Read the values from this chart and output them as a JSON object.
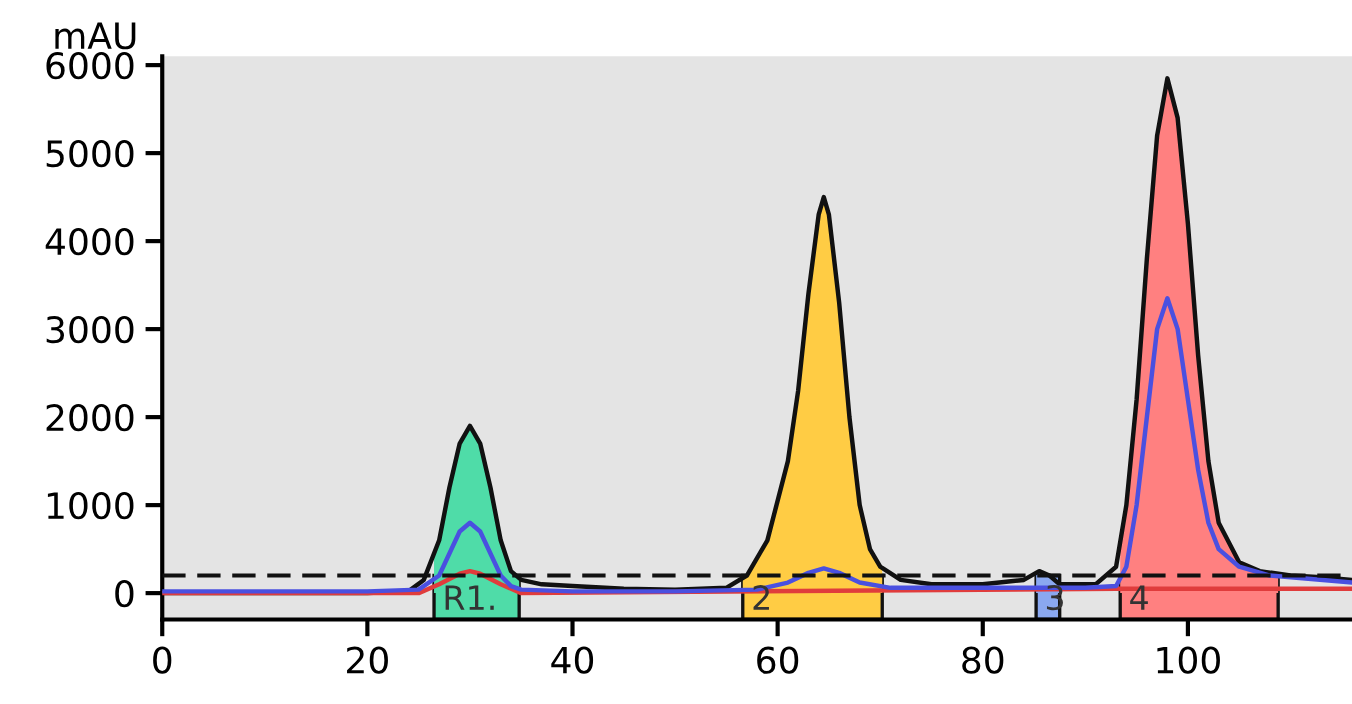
{
  "chart_data": {
    "type": "line",
    "ylabel": "mAU",
    "xlim": [
      0,
      116
    ],
    "ylim": [
      -300,
      6100
    ],
    "xticks": [
      0,
      20,
      40,
      60,
      80,
      100
    ],
    "yticks": [
      0,
      1000,
      2000,
      3000,
      4000,
      5000,
      6000
    ],
    "grid": false,
    "legend": false,
    "marker": "none",
    "line_style": "solid",
    "series": [
      {
        "type": "area",
        "color": "#4fdca8",
        "x": [
          26.5,
          27,
          28,
          29,
          30,
          31,
          32,
          33,
          34,
          34.8
        ],
        "values": [
          450,
          600,
          1200,
          1700,
          1900,
          1700,
          1200,
          600,
          250,
          170
        ]
      },
      {
        "type": "area",
        "color": "#ffcc44",
        "x": [
          56.6,
          57,
          59,
          61,
          62,
          63,
          64,
          64.5,
          65,
          66,
          67,
          68,
          69,
          70,
          70.2
        ],
        "values": [
          170,
          200,
          600,
          1500,
          2300,
          3400,
          4300,
          4500,
          4300,
          3300,
          2000,
          1000,
          500,
          300,
          290
        ]
      },
      {
        "type": "area",
        "color": "#8aa8f0",
        "x": [
          85.2,
          85.5,
          86.5,
          87.5
        ],
        "values": [
          230,
          250,
          200,
          100
        ]
      },
      {
        "type": "area",
        "color": "#ff8080",
        "x": [
          93.4,
          94,
          95,
          96,
          97,
          98,
          99,
          100,
          101,
          102,
          103,
          105,
          107,
          108.8
        ],
        "values": [
          580,
          1000,
          2200,
          3800,
          5200,
          5850,
          5400,
          4200,
          2700,
          1500,
          800,
          350,
          250,
          200
        ]
      },
      {
        "color": "#111111",
        "x": [
          0,
          10,
          20,
          24,
          25.5,
          27,
          28,
          29,
          30,
          31,
          32,
          33,
          34,
          35,
          37,
          40,
          45,
          50,
          55,
          57,
          59,
          61,
          62,
          63,
          64,
          64.5,
          65,
          66,
          67,
          68,
          69,
          70,
          72,
          75,
          80,
          84,
          85.5,
          86.5,
          87.5,
          89,
          91,
          93,
          94,
          95,
          96,
          97,
          98,
          99,
          100,
          101,
          102,
          103,
          105,
          107,
          110,
          113,
          116
        ],
        "values": [
          0,
          0,
          0,
          20,
          150,
          600,
          1200,
          1700,
          1900,
          1700,
          1200,
          600,
          250,
          150,
          100,
          80,
          50,
          40,
          60,
          200,
          600,
          1500,
          2300,
          3400,
          4300,
          4500,
          4300,
          3300,
          2000,
          1000,
          500,
          300,
          150,
          100,
          100,
          150,
          250,
          200,
          100,
          100,
          100,
          300,
          1000,
          2200,
          3800,
          5200,
          5850,
          5400,
          4200,
          2700,
          1500,
          800,
          350,
          250,
          200,
          180,
          150
        ]
      },
      {
        "color": "#e03c3c",
        "x": [
          0,
          25,
          27,
          29,
          30,
          31,
          33,
          35,
          93,
          116
        ],
        "values": [
          0,
          0,
          100,
          220,
          250,
          220,
          100,
          0,
          50,
          50
        ]
      },
      {
        "color": "#4a50e0",
        "x": [
          0,
          20,
          25,
          27,
          28,
          29,
          30,
          31,
          32,
          33,
          34,
          35,
          40,
          50,
          58,
          61,
          63,
          64.5,
          66,
          68,
          71,
          80,
          90,
          93,
          94,
          95,
          96,
          97,
          98,
          99,
          100,
          101,
          102,
          103,
          105,
          108,
          116
        ],
        "values": [
          20,
          20,
          40,
          200,
          450,
          700,
          800,
          700,
          450,
          200,
          80,
          40,
          20,
          20,
          40,
          120,
          230,
          280,
          230,
          120,
          60,
          60,
          60,
          80,
          300,
          1000,
          2000,
          3000,
          3350,
          3000,
          2200,
          1400,
          800,
          500,
          300,
          200,
          120
        ]
      }
    ],
    "ref_lines": [
      {
        "axis": "y",
        "value": 200,
        "color": "#111111",
        "line_style": "dashed"
      }
    ],
    "bands": [
      {
        "axis": "x",
        "from": 26.5,
        "to": 34.8,
        "label": "R1.",
        "color": "#4fdca8"
      },
      {
        "axis": "x",
        "from": 56.6,
        "to": 70.2,
        "label": "2",
        "color": "#ffcc44"
      },
      {
        "axis": "x",
        "from": 85.2,
        "to": 87.5,
        "label": "3",
        "color": "#8aa8f0"
      },
      {
        "axis": "x",
        "from": 93.4,
        "to": 108.8,
        "label": "4",
        "color": "#ff8080"
      }
    ]
  }
}
